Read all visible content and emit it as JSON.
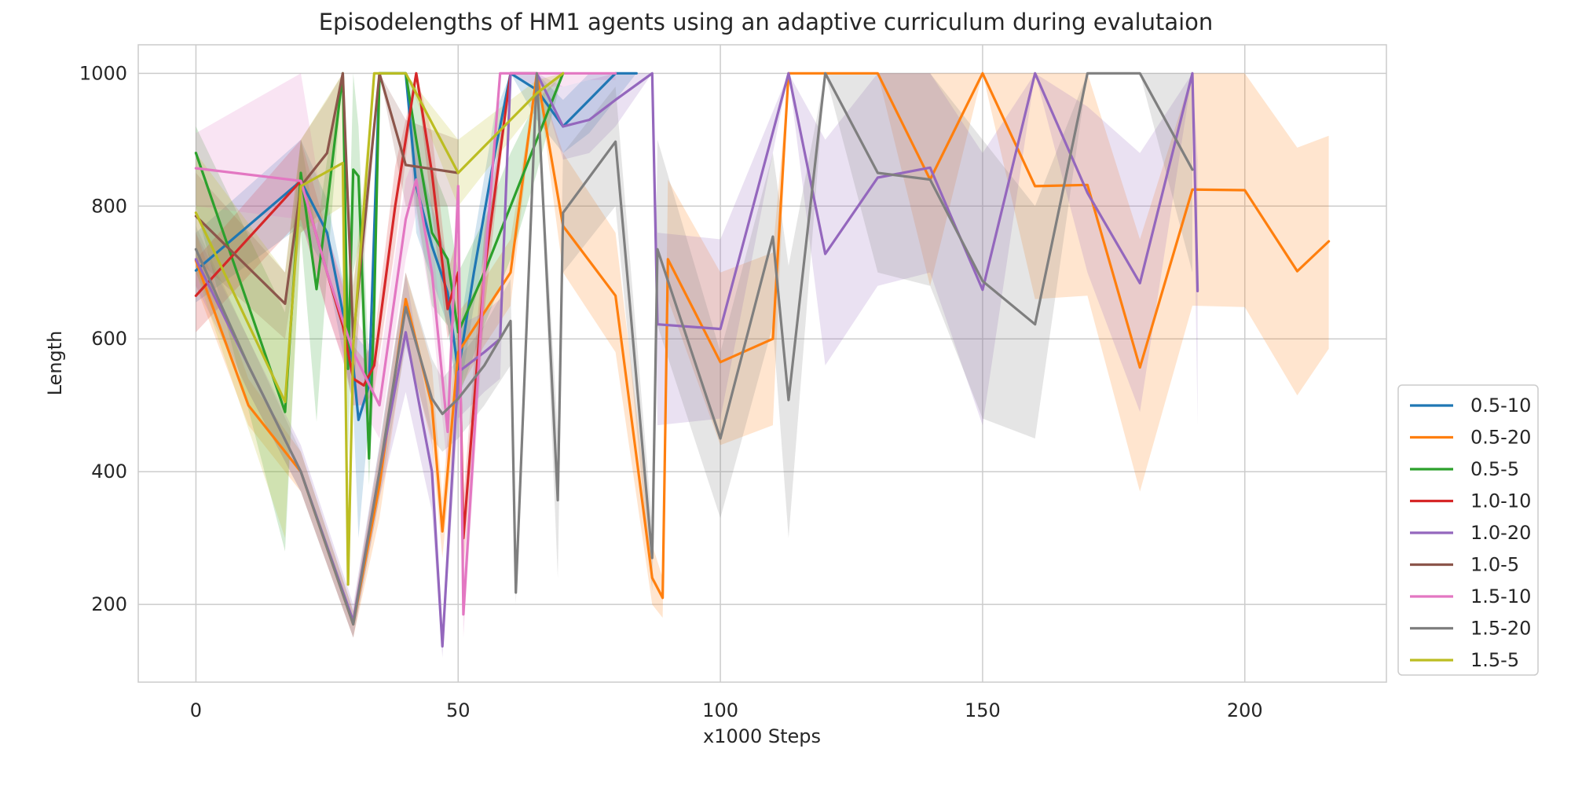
{
  "chart_data": {
    "type": "line",
    "title": "Episodelengths of HM1 agents using an adaptive curriculum during evalutaion",
    "xlabel": "x1000 Steps",
    "ylabel": "Length",
    "xlim": [
      -11,
      227
    ],
    "ylim": [
      83,
      1043
    ],
    "xticks": [
      0,
      50,
      100,
      150,
      200
    ],
    "yticks": [
      200,
      400,
      600,
      800,
      1000
    ],
    "grid": true,
    "legend_position": "lower-right outside",
    "series": [
      {
        "name": "0.5-10",
        "color": "#1f77b4",
        "x": [
          0,
          20,
          25,
          30,
          31,
          33,
          35,
          40,
          42,
          45,
          48,
          50,
          53,
          57,
          60,
          65,
          70,
          75,
          80,
          82,
          84
        ],
        "y": [
          703,
          838,
          760,
          560,
          478,
          530,
          1000,
          1000,
          830,
          740,
          670,
          550,
          700,
          880,
          1000,
          975,
          920,
          960,
          1000,
          1000,
          1000
        ],
        "lower": [
          655,
          770,
          700,
          500,
          300,
          480,
          1000,
          1000,
          760,
          690,
          620,
          500,
          650,
          800,
          1000,
          930,
          880,
          910,
          960,
          980,
          1000
        ],
        "upper": [
          760,
          900,
          810,
          610,
          600,
          580,
          1000,
          1000,
          890,
          800,
          720,
          600,
          750,
          940,
          1000,
          1000,
          960,
          1000,
          1000,
          1000,
          1000
        ]
      },
      {
        "name": "0.5-20",
        "color": "#ff7f0e",
        "x": [
          0,
          10,
          20,
          30,
          35,
          40,
          45,
          47,
          50,
          55,
          60,
          65,
          70,
          80,
          87,
          89,
          90,
          100,
          110,
          113,
          120,
          130,
          140,
          150,
          160,
          170,
          180,
          190,
          200,
          210,
          216
        ],
        "y": [
          718,
          500,
          400,
          170,
          380,
          660,
          500,
          310,
          580,
          640,
          700,
          1000,
          770,
          665,
          240,
          210,
          720,
          565,
          600,
          1000,
          1000,
          1000,
          840,
          1000,
          830,
          832,
          557,
          825,
          824,
          702,
          747
        ],
        "lower": [
          680,
          470,
          370,
          150,
          330,
          600,
          440,
          270,
          520,
          590,
          650,
          1000,
          700,
          580,
          200,
          180,
          660,
          440,
          470,
          1000,
          1000,
          1000,
          680,
          1000,
          660,
          665,
          370,
          650,
          648,
          515,
          585
        ],
        "upper": [
          760,
          540,
          430,
          190,
          430,
          700,
          560,
          360,
          640,
          690,
          750,
          1000,
          880,
          760,
          290,
          240,
          840,
          700,
          730,
          1000,
          1000,
          1000,
          1000,
          1000,
          1000,
          1000,
          750,
          1000,
          1000,
          888,
          906
        ]
      },
      {
        "name": "0.5-5",
        "color": "#2ca02c",
        "x": [
          0,
          17,
          20,
          23,
          25,
          28,
          29,
          30,
          31,
          33,
          34,
          35,
          40,
          42,
          45,
          48,
          50,
          55,
          60,
          65,
          70
        ],
        "y": [
          880,
          490,
          850,
          675,
          800,
          1000,
          555,
          855,
          845,
          420,
          650,
          1000,
          1000,
          900,
          760,
          720,
          610,
          700,
          800,
          900,
          1000
        ],
        "lower": [
          800,
          280,
          760,
          475,
          700,
          1000,
          420,
          700,
          740,
          380,
          540,
          1000,
          1000,
          800,
          650,
          620,
          510,
          620,
          720,
          850,
          1000
        ],
        "upper": [
          920,
          640,
          900,
          760,
          870,
          1000,
          680,
          1000,
          920,
          560,
          760,
          1000,
          1000,
          980,
          860,
          800,
          700,
          780,
          880,
          960,
          1000
        ]
      },
      {
        "name": "1.0-10",
        "color": "#d62728",
        "x": [
          0,
          20,
          25,
          28,
          30,
          32,
          34,
          38,
          42,
          45,
          48,
          50,
          51,
          55,
          60,
          65
        ],
        "y": [
          665,
          838,
          700,
          620,
          540,
          530,
          560,
          800,
          1000,
          850,
          645,
          700,
          300,
          700,
          1000,
          1000
        ],
        "lower": [
          610,
          780,
          640,
          570,
          500,
          500,
          520,
          740,
          1000,
          790,
          600,
          640,
          250,
          640,
          1000,
          1000
        ],
        "upper": [
          720,
          900,
          760,
          680,
          590,
          570,
          600,
          860,
          1000,
          910,
          700,
          760,
          360,
          760,
          1000,
          1000
        ]
      },
      {
        "name": "1.0-20",
        "color": "#9467bd",
        "x": [
          0,
          10,
          20,
          30,
          35,
          40,
          45,
          47,
          50,
          55,
          58,
          60,
          65,
          70,
          75,
          80,
          87,
          88,
          100,
          113,
          120,
          130,
          140,
          150,
          160,
          170,
          180,
          190,
          191
        ],
        "y": [
          720,
          560,
          400,
          175,
          400,
          610,
          400,
          137,
          550,
          580,
          600,
          1000,
          1000,
          920,
          930,
          960,
          1000,
          622,
          615,
          1000,
          728,
          843,
          858,
          674,
          1000,
          820,
          684,
          1000,
          672
        ],
        "lower": [
          680,
          520,
          370,
          150,
          360,
          520,
          340,
          120,
          480,
          520,
          540,
          1000,
          1000,
          870,
          880,
          920,
          1000,
          470,
          480,
          1000,
          560,
          680,
          700,
          470,
          1000,
          700,
          490,
          1000,
          470
        ],
        "upper": [
          760,
          600,
          440,
          200,
          440,
          700,
          460,
          160,
          620,
          640,
          660,
          1000,
          1000,
          980,
          990,
          1000,
          1000,
          760,
          750,
          1000,
          900,
          1000,
          1000,
          880,
          1000,
          950,
          880,
          1000,
          870
        ]
      },
      {
        "name": "1.0-5",
        "color": "#8c564b",
        "x": [
          0,
          17,
          20,
          25,
          28,
          30,
          35,
          40,
          50
        ],
        "y": [
          785,
          653,
          830,
          880,
          1000,
          600,
          1000,
          862,
          850
        ],
        "lower": [
          720,
          600,
          760,
          800,
          1000,
          520,
          1000,
          800,
          800
        ],
        "upper": [
          850,
          700,
          900,
          960,
          1000,
          680,
          1000,
          930,
          900
        ]
      },
      {
        "name": "1.5-10",
        "color": "#e377c2",
        "x": [
          0,
          20,
          25,
          30,
          35,
          40,
          42,
          45,
          48,
          50,
          51,
          55,
          58,
          60,
          65,
          70,
          75,
          80
        ],
        "y": [
          857,
          838,
          700,
          580,
          500,
          780,
          840,
          700,
          460,
          830,
          185,
          700,
          1000,
          1000,
          1000,
          1000,
          1000,
          1000
        ],
        "lower": [
          800,
          780,
          640,
          520,
          450,
          720,
          790,
          640,
          400,
          780,
          150,
          640,
          1000,
          1000,
          980,
          980,
          990,
          990
        ],
        "upper": [
          910,
          1000,
          760,
          640,
          560,
          840,
          880,
          760,
          520,
          870,
          230,
          760,
          1000,
          1000,
          1000,
          1000,
          1000,
          1000
        ]
      },
      {
        "name": "1.5-20",
        "color": "#7f7f7f",
        "x": [
          0,
          10,
          20,
          30,
          35,
          40,
          45,
          47,
          50,
          55,
          60,
          61,
          65,
          69,
          70,
          80,
          87,
          88,
          100,
          110,
          113,
          120,
          130,
          140,
          150,
          160,
          170,
          180,
          190
        ],
        "y": [
          735,
          560,
          400,
          170,
          400,
          648,
          510,
          487,
          510,
          560,
          627,
          218,
          1000,
          357,
          790,
          897,
          270,
          735,
          450,
          754,
          508,
          1000,
          850,
          840,
          687,
          622,
          1000,
          1000,
          855
        ],
        "lower": [
          700,
          520,
          370,
          150,
          360,
          590,
          450,
          430,
          450,
          500,
          560,
          200,
          1000,
          240,
          700,
          800,
          220,
          620,
          330,
          620,
          300,
          1000,
          700,
          680,
          480,
          450,
          1000,
          1000,
          700
        ],
        "upper": [
          770,
          600,
          430,
          190,
          440,
          700,
          570,
          540,
          570,
          620,
          690,
          240,
          1000,
          460,
          880,
          980,
          320,
          900,
          580,
          880,
          710,
          1000,
          1000,
          1000,
          900,
          800,
          1000,
          1000,
          1000
        ]
      },
      {
        "name": "1.5-5",
        "color": "#bcbd22",
        "x": [
          0,
          17,
          20,
          28,
          29,
          30,
          34,
          35,
          40,
          50,
          55,
          60,
          65,
          70
        ],
        "y": [
          790,
          505,
          830,
          865,
          230,
          590,
          1000,
          1000,
          1000,
          850,
          890,
          930,
          970,
          1000
        ],
        "lower": [
          700,
          300,
          760,
          800,
          220,
          500,
          1000,
          1000,
          1000,
          800,
          850,
          900,
          950,
          1000
        ],
        "upper": [
          880,
          700,
          900,
          1000,
          240,
          680,
          1000,
          1000,
          1000,
          900,
          930,
          960,
          990,
          1000
        ]
      }
    ]
  }
}
